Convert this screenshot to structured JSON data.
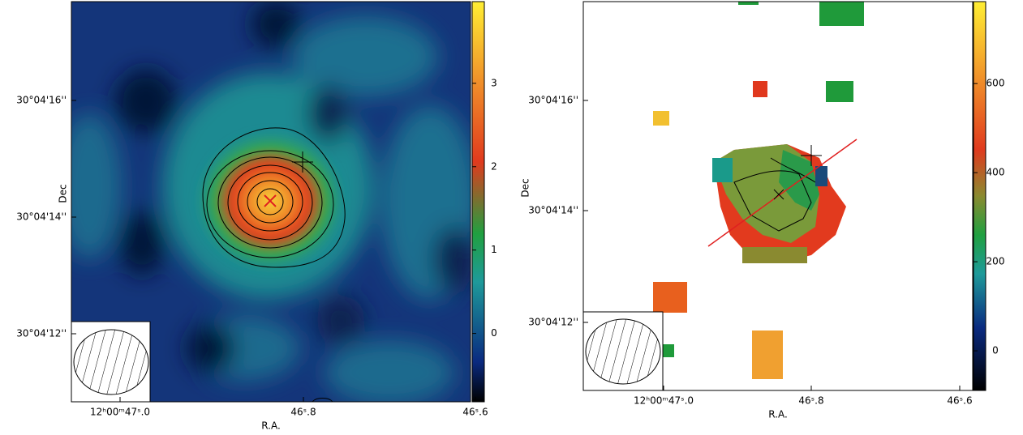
{
  "panels": [
    {
      "x_label": "R.A.",
      "y_label": "Dec",
      "x_ticks": [
        "12ʰ00ᵐ47ˢ.0",
        "46ˢ.8",
        "46ˢ.6"
      ],
      "y_ticks": [
        "30°04'16''",
        "30°04'14''",
        "30°04'12''"
      ],
      "colorbar": {
        "lim": [
          -0.82,
          3.98
        ],
        "ticks": [
          0,
          1,
          2,
          3
        ]
      }
    },
    {
      "x_label": "R.A.",
      "y_label": "Dec",
      "x_ticks": [
        "12ʰ00ᵐ47ˢ.0",
        "46ˢ.8",
        "46ˢ.6"
      ],
      "y_ticks": [
        "30°04'16''",
        "30°04'14''",
        "30°04'12''"
      ],
      "colorbar": {
        "lim": [
          -89,
          784
        ],
        "ticks": [
          0,
          200,
          400,
          600
        ]
      }
    }
  ]
}
